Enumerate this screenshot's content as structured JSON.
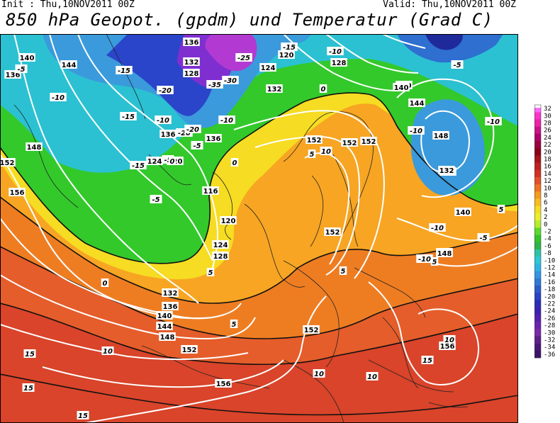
{
  "header": {
    "init": "Init : Thu,10NOV2011 00Z",
    "valid": "Valid: Thu,10NOV2011 00Z",
    "title": "850 hPa Geopot. (gpdm) und Temperatur (Grad C)"
  },
  "colorbar": {
    "labels": [
      "32",
      "30",
      "28",
      "26",
      "24",
      "22",
      "20",
      "18",
      "16",
      "14",
      "12",
      "10",
      "8",
      "6",
      "4",
      "2",
      "0",
      "-2",
      "-4",
      "-6",
      "-8",
      "-10",
      "-12",
      "-14",
      "-16",
      "-18",
      "-20",
      "-22",
      "-24",
      "-26",
      "-28",
      "-30",
      "-32",
      "-34",
      "-36"
    ]
  },
  "geopotential_labels": [
    "140",
    "136",
    "144",
    "148",
    "152",
    "156",
    "136",
    "132",
    "128",
    "124",
    "120",
    "116",
    "120",
    "124",
    "128",
    "132",
    "136",
    "140",
    "144",
    "148",
    "152",
    "156",
    "120",
    "124",
    "128",
    "132",
    "136",
    "140",
    "144",
    "148",
    "152",
    "152",
    "152",
    "152",
    "152",
    "156",
    "148",
    "140",
    "136",
    "132",
    "136",
    "140",
    "148",
    "144"
  ],
  "temperature_labels": [
    "-15",
    "-10",
    "-5",
    "0",
    "5",
    "10",
    "15",
    "-20",
    "-25",
    "-30",
    "-35",
    "-10",
    "-5",
    "0",
    "5",
    "10",
    "15",
    "-15",
    "-10",
    "-5",
    "0",
    "5",
    "10",
    "15",
    "-20",
    "-10",
    "-15",
    "-10",
    "-5",
    "5",
    "10",
    "15",
    "15",
    "10",
    "5",
    "0",
    "-5",
    "-10",
    "5",
    "-5",
    "-10",
    "-15",
    "-20",
    "-10"
  ]
}
